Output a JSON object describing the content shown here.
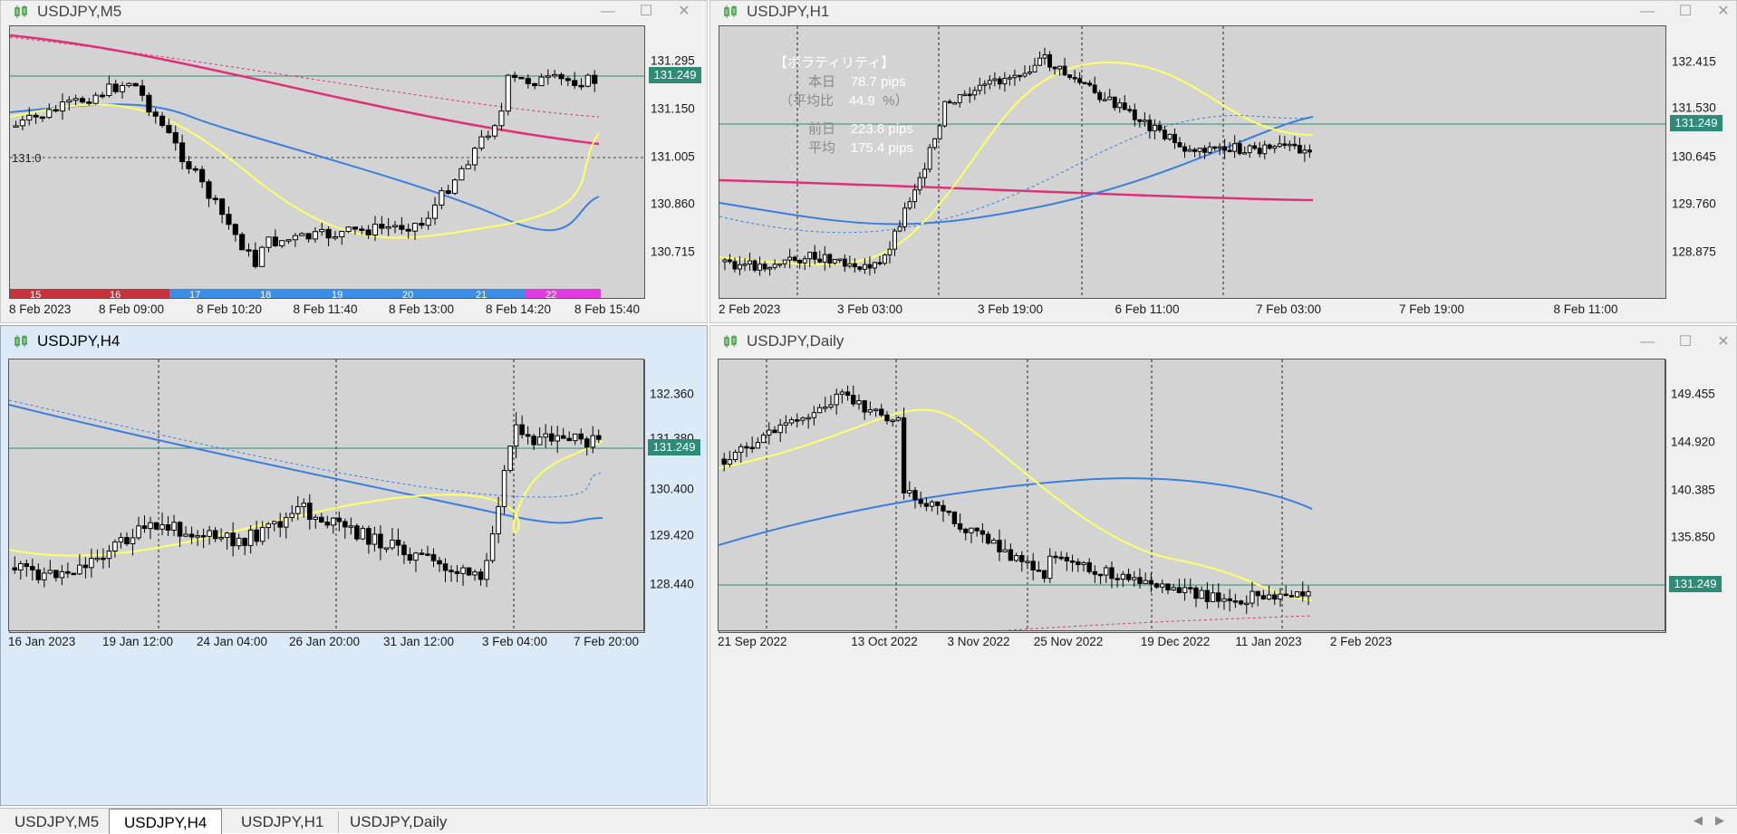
{
  "windows": {
    "m5": {
      "title": "USDJPY,M5",
      "yticks": [
        "131.295",
        "131.150",
        "131.005",
        "130.860",
        "130.715"
      ],
      "xticks": [
        "8 Feb 2023",
        "8 Feb 09:00",
        "8 Feb 10:20",
        "8 Feb 11:40",
        "8 Feb 13:00",
        "8 Feb 14:20",
        "8 Feb 15:40"
      ],
      "price": "131.249",
      "crosshair_value": "131.0",
      "hour_bands": [
        "15",
        "16",
        "17",
        "18",
        "19",
        "20",
        "21",
        "22"
      ]
    },
    "h1": {
      "title": "USDJPY,H1",
      "yticks": [
        "132.415",
        "131.530",
        "130.645",
        "129.760",
        "128.875"
      ],
      "xticks": [
        "2 Feb 2023",
        "3 Feb 03:00",
        "3 Feb 19:00",
        "6 Feb 11:00",
        "7 Feb 03:00",
        "7 Feb 19:00",
        "8 Feb 11:00"
      ],
      "price": "131.249",
      "volatility": {
        "heading": "【ボラティリティ】",
        "today_label": "本日",
        "today_value": "78.7 pips",
        "ratio_label": "（平均比",
        "ratio_value": "44.9",
        "ratio_unit": "%）",
        "prev_label": "前日",
        "prev_value": "223.8 pips",
        "avg_label": "平均",
        "avg_value": "175.4 pips"
      }
    },
    "h4": {
      "title": "USDJPY,H4",
      "yticks": [
        "132.360",
        "131.380",
        "130.400",
        "129.420",
        "128.440"
      ],
      "xticks": [
        "16 Jan 2023",
        "19 Jan 12:00",
        "24 Jan 04:00",
        "26 Jan 20:00",
        "31 Jan 12:00",
        "3 Feb 04:00",
        "7 Feb 20:00"
      ],
      "price": "131.249"
    },
    "daily": {
      "title": "USDJPY,Daily",
      "yticks": [
        "149.455",
        "144.920",
        "140.385",
        "135.850"
      ],
      "xticks": [
        "21 Sep 2022",
        "13 Oct 2022",
        "3 Nov 2022",
        "25 Nov 2022",
        "19 Dec 2022",
        "11 Jan 2023",
        "2 Feb 2023"
      ],
      "price": "131.249"
    }
  },
  "tabs": [
    "USDJPY,M5",
    "USDJPY,H4",
    "USDJPY,H1",
    "USDJPY,Daily"
  ],
  "active_tab": "USDJPY,H4",
  "window_buttons": {
    "minimize": "—",
    "maximize": "☐",
    "close": "✕"
  },
  "colors": {
    "chart_bg": "#d3d3d3",
    "price_line": "#2e8b78",
    "ma_yellow": "#ffff66",
    "ma_blue": "#3a7fe0",
    "ma_pink": "#e0307a",
    "band_red": "#c8323c",
    "band_blue": "#3a8ee8",
    "band_magenta": "#e03ae0"
  }
}
